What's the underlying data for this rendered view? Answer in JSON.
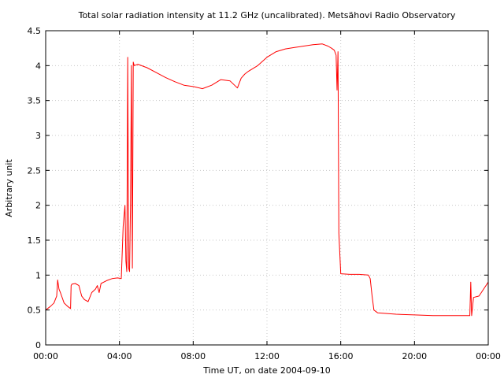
{
  "chart_data": {
    "type": "line",
    "title": "Total solar radiation intensity at 11.2 GHz (uncalibrated). Metsähovi Radio Observatory",
    "xlabel": "Time UT, on date 2004-09-10",
    "ylabel": "Arbitrary unit",
    "xlim": [
      0,
      24
    ],
    "ylim": [
      0,
      4.5
    ],
    "grid": true,
    "x_ticks": [
      {
        "value": 0,
        "label": "00:00"
      },
      {
        "value": 4,
        "label": "04:00"
      },
      {
        "value": 8,
        "label": "08:00"
      },
      {
        "value": 12,
        "label": "12:00"
      },
      {
        "value": 16,
        "label": "16:00"
      },
      {
        "value": 20,
        "label": "20:00"
      },
      {
        "value": 24,
        "label": "00:00"
      }
    ],
    "y_ticks": [
      {
        "value": 0,
        "label": "0"
      },
      {
        "value": 0.5,
        "label": "0.5"
      },
      {
        "value": 1,
        "label": "1"
      },
      {
        "value": 1.5,
        "label": "1.5"
      },
      {
        "value": 2,
        "label": "2"
      },
      {
        "value": 2.5,
        "label": "2.5"
      },
      {
        "value": 3,
        "label": "3"
      },
      {
        "value": 3.5,
        "label": "3.5"
      },
      {
        "value": 4,
        "label": "4"
      },
      {
        "value": 4.5,
        "label": "4.5"
      }
    ],
    "series": [
      {
        "color": "#ff0000",
        "x": [
          0.0,
          0.25,
          0.45,
          0.6,
          0.65,
          0.72,
          0.8,
          1.0,
          1.2,
          1.35,
          1.38,
          1.42,
          1.6,
          1.8,
          1.95,
          2.1,
          2.3,
          2.5,
          2.7,
          2.8,
          2.9,
          3.0,
          3.3,
          3.6,
          3.9,
          4.1,
          4.2,
          4.3,
          4.35,
          4.4,
          4.45,
          4.5,
          4.55,
          4.6,
          4.65,
          4.7,
          4.75,
          4.8,
          5.0,
          5.5,
          6.0,
          6.5,
          7.0,
          7.5,
          8.0,
          8.5,
          9.0,
          9.5,
          10.0,
          10.4,
          10.6,
          10.8,
          11.0,
          11.5,
          12.0,
          12.5,
          13.0,
          13.5,
          14.0,
          14.5,
          15.0,
          15.3,
          15.5,
          15.65,
          15.75,
          15.8,
          15.85,
          15.9,
          16.0,
          16.5,
          17.0,
          17.5,
          17.6,
          17.7,
          17.8,
          18.0,
          19.0,
          20.0,
          21.0,
          22.0,
          22.7,
          23.0,
          23.05,
          23.1,
          23.2,
          23.5,
          23.75,
          24.0
        ],
        "y": [
          0.5,
          0.55,
          0.6,
          0.7,
          0.93,
          0.8,
          0.75,
          0.6,
          0.55,
          0.52,
          0.85,
          0.87,
          0.88,
          0.85,
          0.7,
          0.65,
          0.62,
          0.75,
          0.8,
          0.85,
          0.75,
          0.88,
          0.92,
          0.95,
          0.96,
          0.95,
          1.7,
          2.0,
          1.2,
          1.05,
          4.12,
          1.1,
          1.05,
          2.0,
          4.0,
          1.1,
          4.05,
          4.0,
          4.02,
          3.97,
          3.9,
          3.83,
          3.77,
          3.72,
          3.7,
          3.67,
          3.72,
          3.8,
          3.78,
          3.68,
          3.82,
          3.88,
          3.92,
          4.0,
          4.12,
          4.2,
          4.24,
          4.26,
          4.28,
          4.3,
          4.31,
          4.28,
          4.25,
          4.22,
          4.15,
          3.65,
          4.2,
          1.6,
          1.02,
          1.01,
          1.01,
          1.0,
          0.95,
          0.7,
          0.5,
          0.46,
          0.44,
          0.43,
          0.42,
          0.42,
          0.42,
          0.42,
          0.9,
          0.42,
          0.68,
          0.7,
          0.8,
          0.9
        ]
      }
    ]
  }
}
